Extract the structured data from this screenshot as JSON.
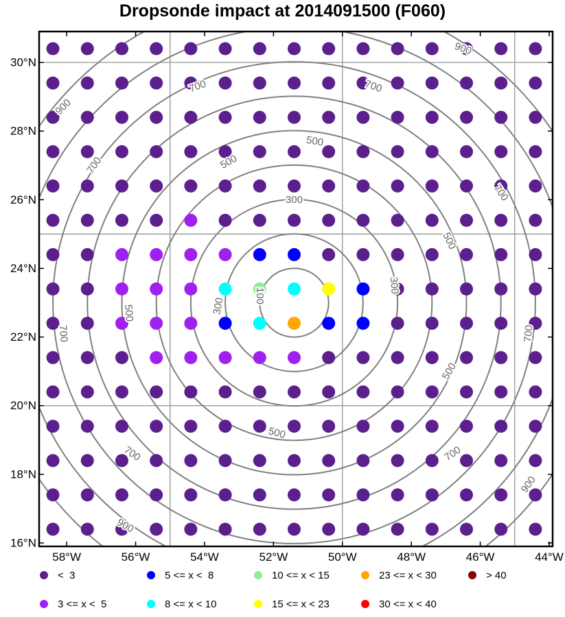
{
  "chart_data": {
    "type": "scatter",
    "title": "Dropsonde impact at 2014091500 (F060)",
    "xlabel": "",
    "ylabel": "",
    "xlim": [
      -58.8,
      -43.9
    ],
    "ylim": [
      15.9,
      30.9
    ],
    "x_tick_labels": [
      "58°W",
      "56°W",
      "54°W",
      "52°W",
      "50°W",
      "48°W",
      "46°W",
      "44°W"
    ],
    "x_tick_values": [
      -58,
      -56,
      -54,
      -52,
      -50,
      -48,
      -46,
      -44
    ],
    "y_tick_labels": [
      "16°N",
      "18°N",
      "20°N",
      "22°N",
      "24°N",
      "26°N",
      "28°N",
      "30°N"
    ],
    "y_tick_values": [
      16,
      18,
      20,
      22,
      24,
      26,
      28,
      30
    ],
    "grid_lon": [
      -55,
      -50,
      -45
    ],
    "grid_lat": [
      20,
      25,
      30
    ],
    "point_grid": {
      "lons": [
        -58.4,
        -57.4,
        -56.4,
        -55.4,
        -54.4,
        -53.4,
        -52.4,
        -51.4,
        -50.4,
        -49.4,
        -48.4,
        -47.4,
        -46.4,
        -45.4,
        -44.4
      ],
      "lats": [
        30.4,
        29.4,
        28.4,
        27.4,
        26.4,
        25.4,
        24.4,
        23.4,
        22.4,
        21.4,
        20.4,
        19.4,
        18.4,
        17.4,
        16.4
      ]
    },
    "point_classes": [
      "000000000000000",
      "000000000000000",
      "000000000000000",
      "000000000000000",
      "000000000000000",
      "000010000000000",
      "001111220000000",
      "001113435200000",
      "001112362200000",
      "000111110000000",
      "000000000000000",
      "000000000000000",
      "000000000000000",
      "000000000000000",
      "000000000000000"
    ],
    "contours": {
      "center": [
        -51.4,
        23.0
      ],
      "color": "#7f7f7f",
      "levels": [
        {
          "value": 100,
          "radius_deg": 1.0
        },
        {
          "value": 200,
          "radius_deg": 2.0
        },
        {
          "value": 300,
          "radius_deg": 3.0
        },
        {
          "value": 400,
          "radius_deg": 4.0
        },
        {
          "value": 500,
          "radius_deg": 5.0
        },
        {
          "value": 600,
          "radius_deg": 6.0
        },
        {
          "value": 700,
          "radius_deg": 7.0
        },
        {
          "value": 800,
          "radius_deg": 8.0
        },
        {
          "value": 900,
          "radius_deg": 9.0
        }
      ],
      "labels": [
        {
          "text": "100",
          "lon": -52.4,
          "lat": 23.2,
          "rot": 90
        },
        {
          "text": "300",
          "lon": -53.6,
          "lat": 22.9,
          "rot": -80
        },
        {
          "text": "300",
          "lon": -51.4,
          "lat": 26.0,
          "rot": 0
        },
        {
          "text": "300",
          "lon": -48.5,
          "lat": 23.5,
          "rot": 85
        },
        {
          "text": "500",
          "lon": -56.2,
          "lat": 22.7,
          "rot": 85
        },
        {
          "text": "500",
          "lon": -53.3,
          "lat": 27.1,
          "rot": -30
        },
        {
          "text": "500",
          "lon": -50.8,
          "lat": 27.7,
          "rot": 10
        },
        {
          "text": "500",
          "lon": -46.9,
          "lat": 24.8,
          "rot": 65
        },
        {
          "text": "500",
          "lon": -46.9,
          "lat": 21.0,
          "rot": -60
        },
        {
          "text": "500",
          "lon": -51.9,
          "lat": 19.2,
          "rot": 15
        },
        {
          "text": "700",
          "lon": -57.2,
          "lat": 27.0,
          "rot": -55
        },
        {
          "text": "700",
          "lon": -54.2,
          "lat": 29.3,
          "rot": -20
        },
        {
          "text": "700",
          "lon": -49.1,
          "lat": 29.3,
          "rot": 20
        },
        {
          "text": "700",
          "lon": -45.4,
          "lat": 26.2,
          "rot": 55
        },
        {
          "text": "700",
          "lon": -58.1,
          "lat": 22.1,
          "rot": 85
        },
        {
          "text": "700",
          "lon": -44.6,
          "lat": 22.1,
          "rot": -85
        },
        {
          "text": "700",
          "lon": -56.1,
          "lat": 18.6,
          "rot": 35
        },
        {
          "text": "700",
          "lon": -46.8,
          "lat": 18.6,
          "rot": -35
        },
        {
          "text": "900",
          "lon": -58.1,
          "lat": 28.7,
          "rot": -45
        },
        {
          "text": "900",
          "lon": -46.5,
          "lat": 30.4,
          "rot": 20
        },
        {
          "text": "900",
          "lon": -56.3,
          "lat": 16.5,
          "rot": 30
        },
        {
          "text": "900",
          "lon": -44.6,
          "lat": 17.7,
          "rot": -55
        }
      ]
    },
    "legend": [
      {
        "label": "<  3",
        "color": "#5b1f8e"
      },
      {
        "label": "3 <= x <  5",
        "color": "#a020f0"
      },
      {
        "label": "5 <= x <  8",
        "color": "#0000ff"
      },
      {
        "label": "8 <= x < 10",
        "color": "#00ffff"
      },
      {
        "label": "10 <= x < 15",
        "color": "#90ee90"
      },
      {
        "label": "15 <= x < 23",
        "color": "#ffff00"
      },
      {
        "label": "23 <= x < 30",
        "color": "#ffa500"
      },
      {
        "label": "30 <= x < 40",
        "color": "#ff0000"
      },
      {
        "label": "> 40",
        "color": "#8b0000"
      }
    ],
    "grid": true,
    "legend_position": "bottom"
  }
}
